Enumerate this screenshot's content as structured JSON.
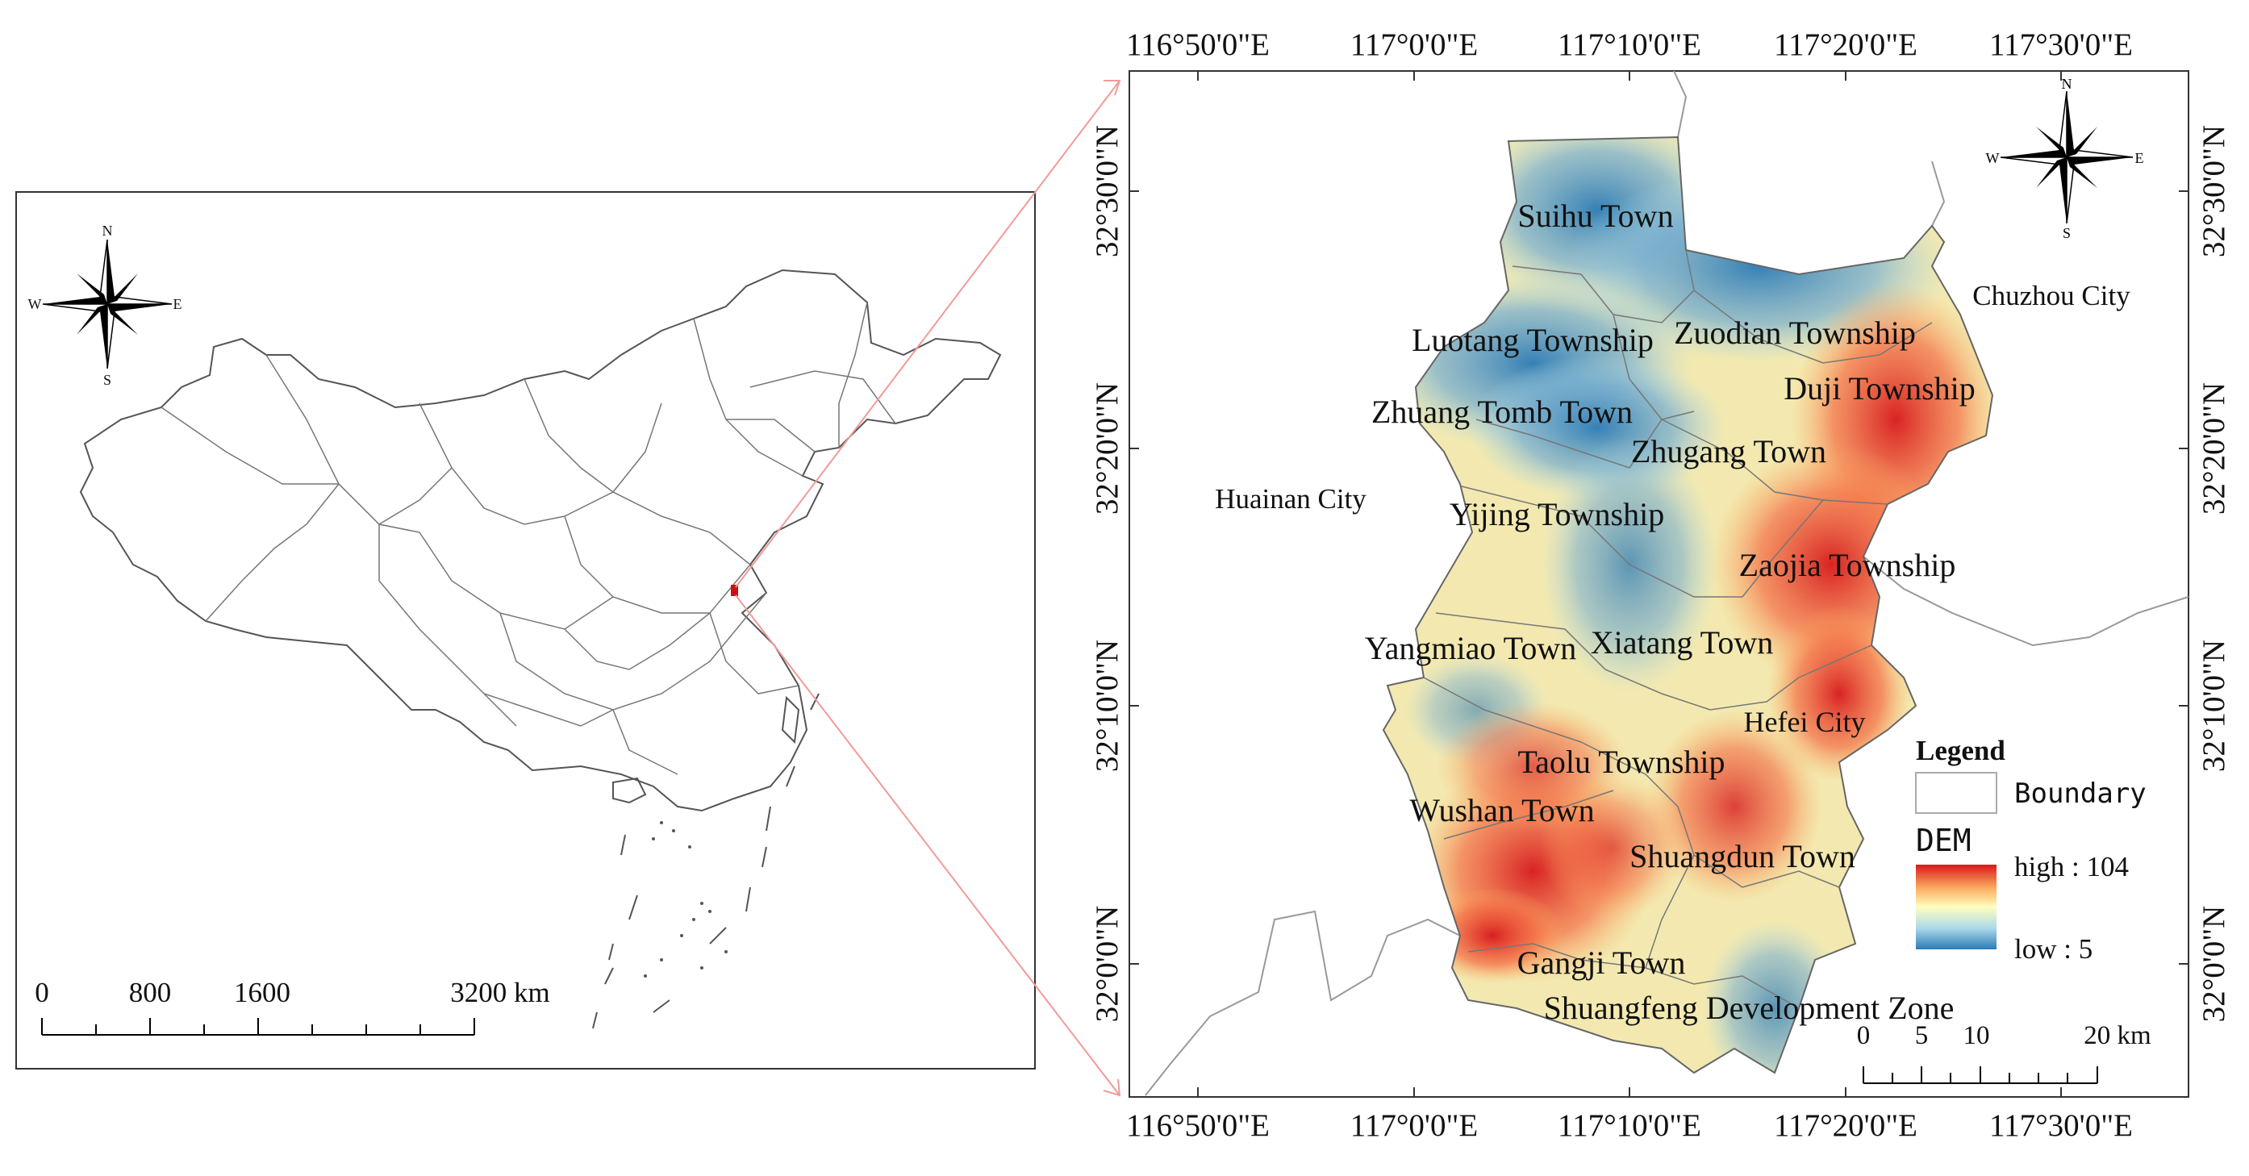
{
  "overview_map": {
    "scale_labels": [
      "0",
      "800",
      "1600",
      "3200 km"
    ],
    "compass": {
      "n": "N",
      "s": "S",
      "e": "E",
      "w": "W"
    }
  },
  "detail_map": {
    "top_ticks": [
      "116°50'0\"E",
      "117°0'0\"E",
      "117°10'0\"E",
      "117°20'0\"E",
      "117°30'0\"E"
    ],
    "bottom_ticks": [
      "116°50'0\"E",
      "117°0'0\"E",
      "117°10'0\"E",
      "117°20'0\"E",
      "117°30'0\"E"
    ],
    "left_ticks": [
      "32°30'0\"N",
      "32°20'0\"N",
      "32°10'0\"N",
      "32°0'0\"N"
    ],
    "right_ticks": [
      "32°30'0\"N",
      "32°20'0\"N",
      "32°10'0\"N",
      "32°0'0\"N"
    ],
    "places": [
      "Suihu Town",
      "Luotang Township",
      "Zuodian Township",
      "Duji Township",
      "Zhuang Tomb Town",
      "Zhugang Town",
      "Yijing Township",
      "Zaojia Township",
      "Yangmiao Town",
      "Xiatang Town",
      "Hefei City",
      "Taolu Township",
      "Wushan Town",
      "Shuangdun Town",
      "Gangji Town",
      "Shuangfeng Development Zone"
    ],
    "neighbors": [
      "Huainan City",
      "Chuzhou City"
    ],
    "compass": {
      "n": "N",
      "s": "S",
      "e": "E",
      "w": "W"
    },
    "scale_labels": [
      "0",
      "5",
      "10",
      "20 km"
    ],
    "legend": {
      "title": "Legend",
      "boundary": "Boundary",
      "dem_title": "DEM",
      "high": "high : 104",
      "low": "low : 5",
      "colors": [
        "#d7191c",
        "#fdae61",
        "#ffffbf",
        "#abd9e9",
        "#2c7bb6"
      ]
    },
    "dem_range": {
      "high": 104,
      "low": 5
    }
  }
}
